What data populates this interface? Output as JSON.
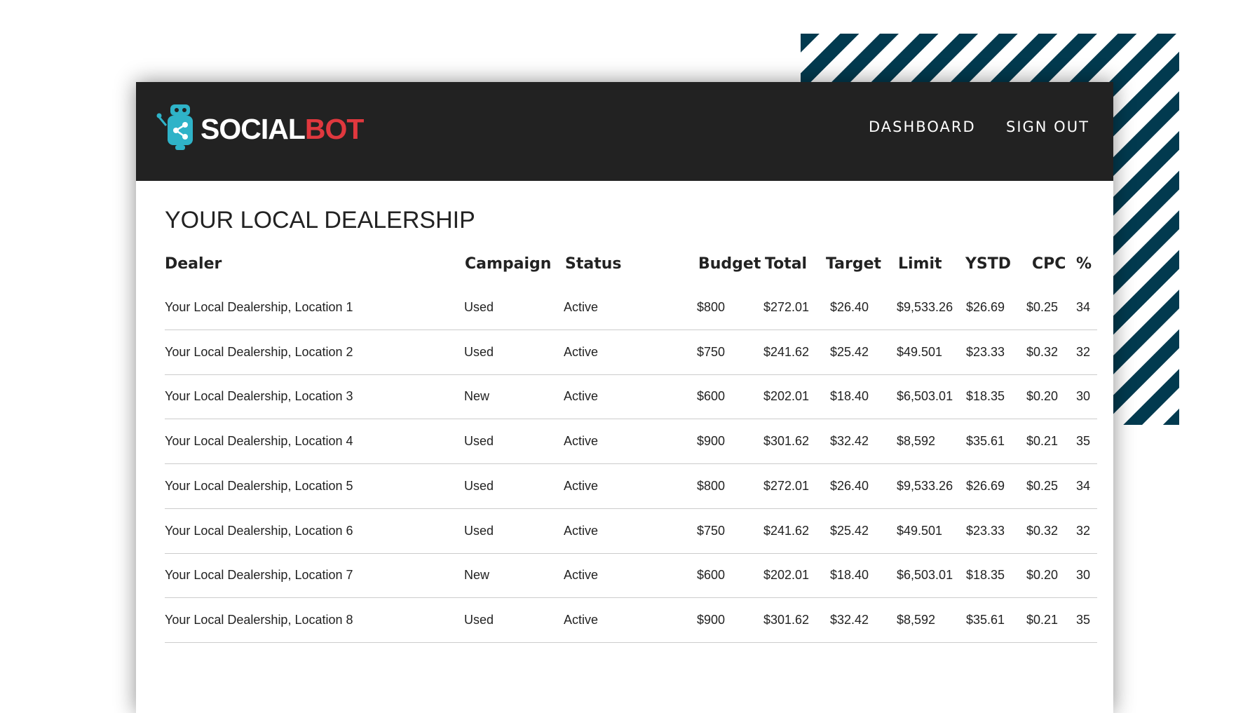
{
  "header": {
    "logo": {
      "first": "SOCIAL",
      "second": "BOT"
    },
    "nav": [
      "DASHBOARD",
      "SIGN OUT"
    ]
  },
  "title": "YOUR LOCAL DEALERSHIP",
  "table": {
    "columns": [
      "Dealer",
      "Campaign",
      "Status",
      "Budget",
      "Total",
      "Target",
      "Limit",
      "YSTD",
      "CPC",
      "%"
    ],
    "rows": [
      [
        "Your Local Dealership, Location 1",
        "Used",
        "Active",
        "$800",
        "$272.01",
        "$26.40",
        "$9,533.26",
        "$26.69",
        "$0.25",
        "34"
      ],
      [
        "Your Local Dealership, Location 2",
        "Used",
        "Active",
        "$750",
        "$241.62",
        "$25.42",
        "$49.501",
        "$23.33",
        "$0.32",
        "32"
      ],
      [
        "Your Local Dealership, Location 3",
        "New",
        "Active",
        "$600",
        "$202.01",
        "$18.40",
        "$6,503.01",
        "$18.35",
        "$0.20",
        "30"
      ],
      [
        "Your Local Dealership, Location 4",
        "Used",
        "Active",
        "$900",
        "$301.62",
        "$32.42",
        "$8,592",
        "$35.61",
        "$0.21",
        "35"
      ],
      [
        "Your Local Dealership, Location 5",
        "Used",
        "Active",
        "$800",
        "$272.01",
        "$26.40",
        "$9,533.26",
        "$26.69",
        "$0.25",
        "34"
      ],
      [
        "Your Local Dealership, Location 6",
        "Used",
        "Active",
        "$750",
        "$241.62",
        "$25.42",
        "$49.501",
        "$23.33",
        "$0.32",
        "32"
      ],
      [
        "Your Local Dealership, Location 7",
        "New",
        "Active",
        "$600",
        "$202.01",
        "$18.40",
        "$6,503.01",
        "$18.35",
        "$0.20",
        "30"
      ],
      [
        "Your Local Dealership, Location 8",
        "Used",
        "Active",
        "$900",
        "$301.62",
        "$32.42",
        "$8,592",
        "$35.61",
        "$0.21",
        "35"
      ]
    ]
  }
}
